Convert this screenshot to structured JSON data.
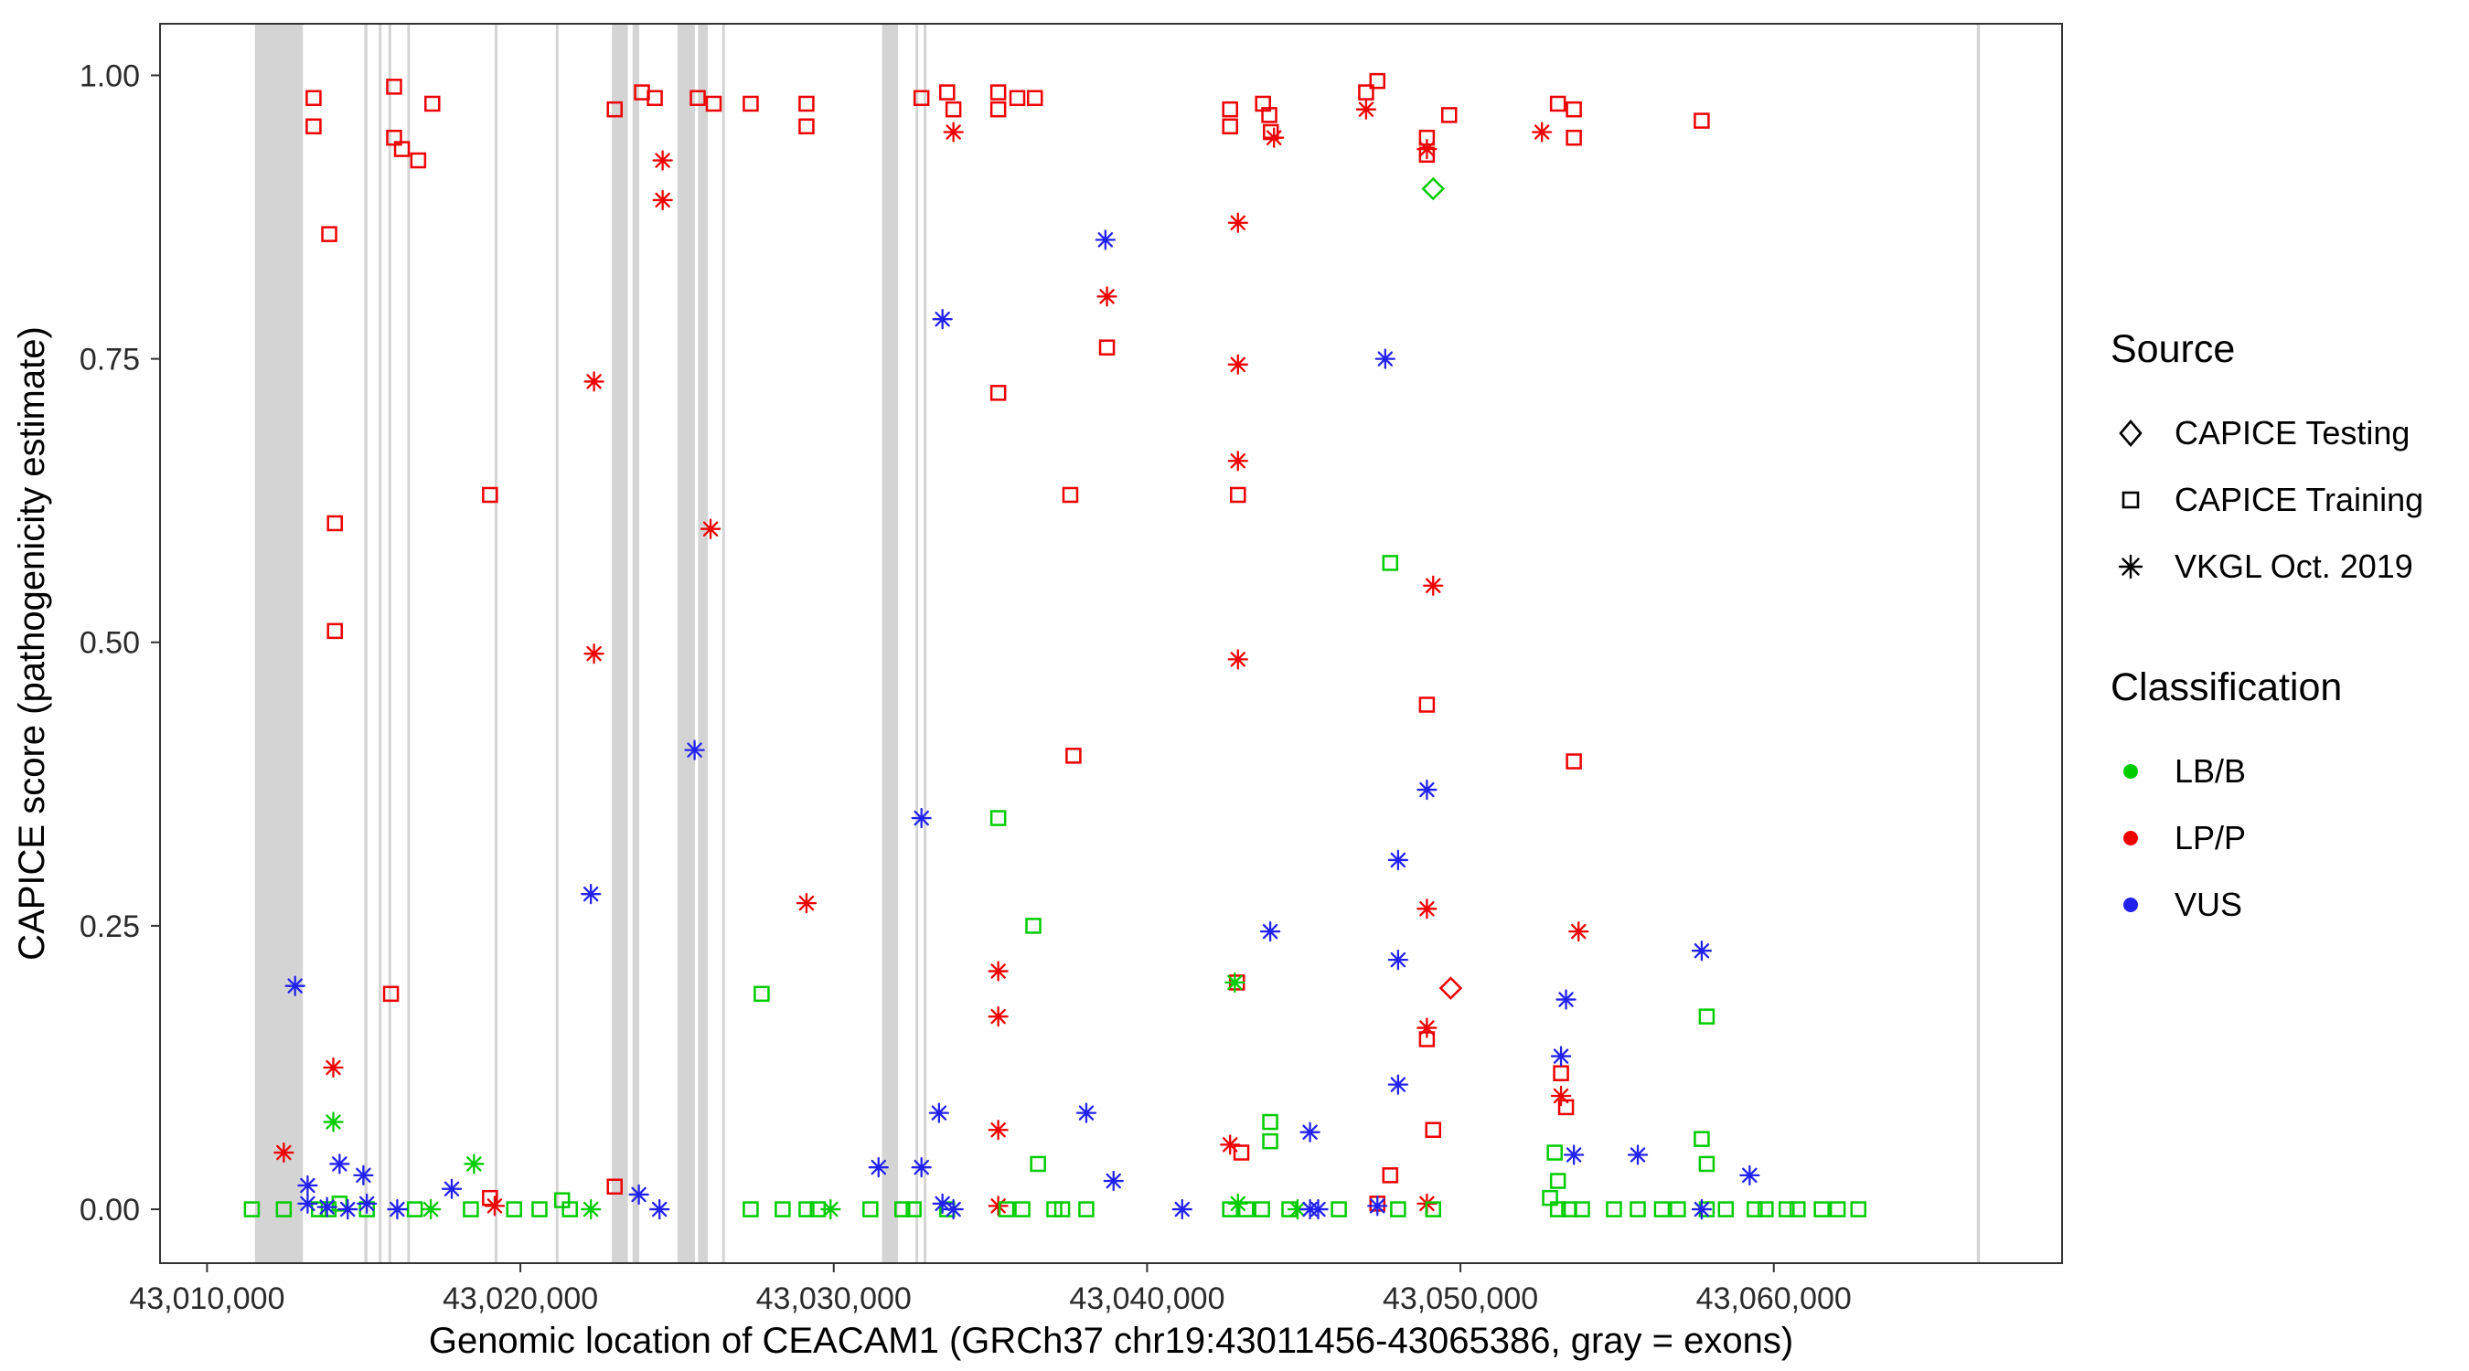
{
  "legend": {
    "source": {
      "title": "Source",
      "items": [
        {
          "label": "CAPICE Testing",
          "icon": "diamond-outline-icon"
        },
        {
          "label": "CAPICE Training",
          "icon": "square-outline-icon"
        },
        {
          "label": "VKGL Oct. 2019",
          "icon": "asterisk-icon"
        }
      ]
    },
    "classification": {
      "title": "Classification",
      "items": [
        {
          "label": "LB/B",
          "color_code": "B"
        },
        {
          "label": "LP/P",
          "color_code": "P"
        },
        {
          "label": "VUS",
          "color_code": "U"
        }
      ]
    }
  },
  "chart_data": {
    "type": "scatter",
    "title": "",
    "xlabel": "Genomic location of CEACAM1 (GRCh37 chr19:43011456-43065386, gray = exons)",
    "ylabel": "CAPICE score (pathogenicity estimate)",
    "x_domain": [
      43008500,
      43069200
    ],
    "y_domain": [
      -0.0475,
      1.0455
    ],
    "x_ticks": [
      {
        "value": 43010000,
        "label": "43,010,000"
      },
      {
        "value": 43020000,
        "label": "43,020,000"
      },
      {
        "value": 43030000,
        "label": "43,030,000"
      },
      {
        "value": 43040000,
        "label": "43,040,000"
      },
      {
        "value": 43050000,
        "label": "43,050,000"
      },
      {
        "value": 43060000,
        "label": "43,060,000"
      }
    ],
    "y_ticks": [
      {
        "value": 0,
        "label": "0.00"
      },
      {
        "value": 0.25,
        "label": "0.25"
      },
      {
        "value": 0.5,
        "label": "0.50"
      },
      {
        "value": 0.75,
        "label": "0.75"
      },
      {
        "value": 1,
        "label": "1.00"
      }
    ],
    "grid": false,
    "legend_position": "right",
    "exon_color": "#D4D4D4",
    "colors": {
      "B": "#00CC00",
      "P": "#EE0000",
      "U": "#2222EE"
    },
    "source_codes": {
      "T": "CAPICE Testing",
      "R": "CAPICE Training",
      "V": "VKGL Oct. 2019"
    },
    "class_codes": {
      "B": "LB/B",
      "P": "LP/P",
      "U": "VUS"
    },
    "exons": [
      [
        43011530,
        43013060
      ],
      [
        43015020,
        43015120
      ],
      [
        43015480,
        43015560
      ],
      [
        43015790,
        43015870
      ],
      [
        43016390,
        43016470
      ],
      [
        43019180,
        43019230
      ],
      [
        43021130,
        43021190
      ],
      [
        43022920,
        43023430
      ],
      [
        43023580,
        43023790
      ],
      [
        43025010,
        43025570
      ],
      [
        43025670,
        43025980
      ],
      [
        43026440,
        43026500
      ],
      [
        43031540,
        43032050
      ],
      [
        43032610,
        43032670
      ],
      [
        43032870,
        43032930
      ],
      [
        43066480,
        43066580
      ]
    ],
    "points": [
      [
        43013400,
        0.98,
        "R",
        "P"
      ],
      [
        43013400,
        0.955,
        "R",
        "P"
      ],
      [
        43013900,
        0.86,
        "R",
        "P"
      ],
      [
        43015970,
        0.99,
        "R",
        "P"
      ],
      [
        43015970,
        0.945,
        "R",
        "P"
      ],
      [
        43016220,
        0.935,
        "R",
        "P"
      ],
      [
        43016740,
        0.925,
        "R",
        "P"
      ],
      [
        43017190,
        0.975,
        "R",
        "P"
      ],
      [
        43023010,
        0.97,
        "R",
        "P"
      ],
      [
        43023880,
        0.985,
        "R",
        "P"
      ],
      [
        43024290,
        0.98,
        "R",
        "P"
      ],
      [
        43025660,
        0.98,
        "R",
        "P"
      ],
      [
        43026170,
        0.975,
        "R",
        "P"
      ],
      [
        43027350,
        0.975,
        "R",
        "P"
      ],
      [
        43029130,
        0.975,
        "R",
        "P"
      ],
      [
        43029130,
        0.955,
        "R",
        "P"
      ],
      [
        43032800,
        0.98,
        "R",
        "P"
      ],
      [
        43033620,
        0.985,
        "R",
        "P"
      ],
      [
        43033820,
        0.97,
        "R",
        "P"
      ],
      [
        43035250,
        0.985,
        "R",
        "P"
      ],
      [
        43035250,
        0.97,
        "R",
        "P"
      ],
      [
        43035860,
        0.98,
        "R",
        "P"
      ],
      [
        43036420,
        0.98,
        "R",
        "P"
      ],
      [
        43042650,
        0.97,
        "R",
        "P"
      ],
      [
        43042650,
        0.955,
        "R",
        "P"
      ],
      [
        43043700,
        0.975,
        "R",
        "P"
      ],
      [
        43043900,
        0.965,
        "R",
        "P"
      ],
      [
        43043950,
        0.95,
        "R",
        "P"
      ],
      [
        43046990,
        0.985,
        "R",
        "P"
      ],
      [
        43047350,
        0.995,
        "R",
        "P"
      ],
      [
        43048930,
        0.945,
        "R",
        "P"
      ],
      [
        43048930,
        0.93,
        "R",
        "P"
      ],
      [
        43049640,
        0.965,
        "R",
        "P"
      ],
      [
        43053110,
        0.975,
        "R",
        "P"
      ],
      [
        43053620,
        0.97,
        "R",
        "P"
      ],
      [
        43053620,
        0.945,
        "R",
        "P"
      ],
      [
        43057700,
        0.96,
        "R",
        "P"
      ],
      [
        43038720,
        0.76,
        "R",
        "P"
      ],
      [
        43035250,
        0.72,
        "R",
        "P"
      ],
      [
        43037550,
        0.63,
        "R",
        "P"
      ],
      [
        43042900,
        0.63,
        "R",
        "P"
      ],
      [
        43019030,
        0.63,
        "R",
        "P"
      ],
      [
        43014080,
        0.605,
        "R",
        "P"
      ],
      [
        43014080,
        0.51,
        "R",
        "P"
      ],
      [
        43048930,
        0.445,
        "R",
        "P"
      ],
      [
        43037650,
        0.4,
        "R",
        "P"
      ],
      [
        43053620,
        0.395,
        "R",
        "P"
      ],
      [
        43042870,
        0.2,
        "R",
        "P"
      ],
      [
        43015870,
        0.19,
        "R",
        "P"
      ],
      [
        43048930,
        0.15,
        "R",
        "P"
      ],
      [
        43053210,
        0.12,
        "R",
        "P"
      ],
      [
        43053370,
        0.09,
        "R",
        "P"
      ],
      [
        43049130,
        0.07,
        "R",
        "P"
      ],
      [
        43043010,
        0.05,
        "R",
        "P"
      ],
      [
        43047760,
        0.03,
        "R",
        "P"
      ],
      [
        43023010,
        0.02,
        "R",
        "P"
      ],
      [
        43019030,
        0.01,
        "R",
        "P"
      ],
      [
        43047350,
        0.005,
        "R",
        "P"
      ],
      [
        43024540,
        0.925,
        "V",
        "P"
      ],
      [
        43024540,
        0.89,
        "V",
        "P"
      ],
      [
        43033820,
        0.95,
        "V",
        "P"
      ],
      [
        43044050,
        0.945,
        "V",
        "P"
      ],
      [
        43046990,
        0.97,
        "V",
        "P"
      ],
      [
        43048930,
        0.935,
        "V",
        "P"
      ],
      [
        43052600,
        0.95,
        "V",
        "P"
      ],
      [
        43042900,
        0.87,
        "V",
        "P"
      ],
      [
        43038720,
        0.805,
        "V",
        "P"
      ],
      [
        43042900,
        0.745,
        "V",
        "P"
      ],
      [
        43022350,
        0.73,
        "V",
        "P"
      ],
      [
        43042900,
        0.66,
        "V",
        "P"
      ],
      [
        43026070,
        0.6,
        "V",
        "P"
      ],
      [
        43049130,
        0.55,
        "V",
        "P"
      ],
      [
        43022350,
        0.49,
        "V",
        "P"
      ],
      [
        43042900,
        0.485,
        "V",
        "P"
      ],
      [
        43029130,
        0.27,
        "V",
        "P"
      ],
      [
        43048930,
        0.265,
        "V",
        "P"
      ],
      [
        43053770,
        0.245,
        "V",
        "P"
      ],
      [
        43035250,
        0.21,
        "V",
        "P"
      ],
      [
        43035250,
        0.17,
        "V",
        "P"
      ],
      [
        43048930,
        0.16,
        "V",
        "P"
      ],
      [
        43014030,
        0.125,
        "V",
        "P"
      ],
      [
        43053210,
        0.1,
        "V",
        "P"
      ],
      [
        43035250,
        0.07,
        "V",
        "P"
      ],
      [
        43042650,
        0.057,
        "V",
        "P"
      ],
      [
        43012450,
        0.05,
        "V",
        "P"
      ],
      [
        43019180,
        0.003,
        "V",
        "P"
      ],
      [
        43035250,
        0.003,
        "V",
        "P"
      ],
      [
        43048930,
        0.005,
        "V",
        "P"
      ],
      [
        43049690,
        0.195,
        "T",
        "P"
      ],
      [
        43049130,
        0.9,
        "T",
        "B"
      ],
      [
        43047760,
        0.57,
        "R",
        "B"
      ],
      [
        43035250,
        0.345,
        "R",
        "B"
      ],
      [
        43036370,
        0.25,
        "R",
        "B"
      ],
      [
        43027700,
        0.19,
        "R",
        "B"
      ],
      [
        43057860,
        0.17,
        "R",
        "B"
      ],
      [
        43043930,
        0.077,
        "R",
        "B"
      ],
      [
        43043930,
        0.06,
        "R",
        "B"
      ],
      [
        43057700,
        0.062,
        "R",
        "B"
      ],
      [
        43053010,
        0.05,
        "R",
        "B"
      ],
      [
        43057860,
        0.04,
        "R",
        "B"
      ],
      [
        43036520,
        0.04,
        "R",
        "B"
      ],
      [
        43053110,
        0.025,
        "R",
        "B"
      ],
      [
        43011430,
        0,
        "R",
        "B"
      ],
      [
        43012450,
        0,
        "R",
        "B"
      ],
      [
        43013570,
        0,
        "R",
        "B"
      ],
      [
        43013880,
        0,
        "R",
        "B"
      ],
      [
        43014230,
        0.005,
        "R",
        "B"
      ],
      [
        43015100,
        0,
        "R",
        "B"
      ],
      [
        43016630,
        0,
        "R",
        "B"
      ],
      [
        43018420,
        0,
        "R",
        "B"
      ],
      [
        43019800,
        0,
        "R",
        "B"
      ],
      [
        43020610,
        0,
        "R",
        "B"
      ],
      [
        43021330,
        0.008,
        "R",
        "B"
      ],
      [
        43021580,
        0,
        "R",
        "B"
      ],
      [
        43027350,
        0,
        "R",
        "B"
      ],
      [
        43028370,
        0,
        "R",
        "B"
      ],
      [
        43029130,
        0,
        "R",
        "B"
      ],
      [
        43029490,
        0,
        "R",
        "B"
      ],
      [
        43031170,
        0,
        "R",
        "B"
      ],
      [
        43032190,
        0,
        "R",
        "B"
      ],
      [
        43032550,
        0,
        "R",
        "B"
      ],
      [
        43033620,
        0,
        "R",
        "B"
      ],
      [
        43035510,
        0,
        "R",
        "B"
      ],
      [
        43036020,
        0,
        "R",
        "B"
      ],
      [
        43037040,
        0,
        "R",
        "B"
      ],
      [
        43037290,
        0,
        "R",
        "B"
      ],
      [
        43038060,
        0,
        "R",
        "B"
      ],
      [
        43042650,
        0,
        "R",
        "B"
      ],
      [
        43043160,
        0,
        "R",
        "B"
      ],
      [
        43043670,
        0,
        "R",
        "B"
      ],
      [
        43044540,
        0,
        "R",
        "B"
      ],
      [
        43046120,
        0,
        "R",
        "B"
      ],
      [
        43048010,
        0,
        "R",
        "B"
      ],
      [
        43049130,
        0,
        "R",
        "B"
      ],
      [
        43052860,
        0.01,
        "R",
        "B"
      ],
      [
        43053110,
        0,
        "R",
        "B"
      ],
      [
        43053470,
        0,
        "R",
        "B"
      ],
      [
        43053880,
        0,
        "R",
        "B"
      ],
      [
        43054900,
        0,
        "R",
        "B"
      ],
      [
        43055660,
        0,
        "R",
        "B"
      ],
      [
        43056430,
        0,
        "R",
        "B"
      ],
      [
        43056940,
        0,
        "R",
        "B"
      ],
      [
        43057860,
        0,
        "R",
        "B"
      ],
      [
        43058470,
        0,
        "R",
        "B"
      ],
      [
        43059390,
        0,
        "R",
        "B"
      ],
      [
        43059740,
        0,
        "R",
        "B"
      ],
      [
        43060410,
        0,
        "R",
        "B"
      ],
      [
        43060760,
        0,
        "R",
        "B"
      ],
      [
        43061530,
        0,
        "R",
        "B"
      ],
      [
        43062040,
        0,
        "R",
        "B"
      ],
      [
        43062700,
        0,
        "R",
        "B"
      ],
      [
        43014030,
        0.077,
        "V",
        "B"
      ],
      [
        43018520,
        0.04,
        "V",
        "B"
      ],
      [
        43042800,
        0.2,
        "V",
        "B"
      ],
      [
        43017140,
        0,
        "V",
        "B"
      ],
      [
        43022250,
        0,
        "V",
        "B"
      ],
      [
        43029900,
        0,
        "V",
        "B"
      ],
      [
        43042900,
        0.005,
        "V",
        "B"
      ],
      [
        43044800,
        0,
        "V",
        "B"
      ],
      [
        43038670,
        0.855,
        "V",
        "U"
      ],
      [
        43033470,
        0.785,
        "V",
        "U"
      ],
      [
        43047600,
        0.75,
        "V",
        "U"
      ],
      [
        43025560,
        0.405,
        "V",
        "U"
      ],
      [
        43048930,
        0.37,
        "V",
        "U"
      ],
      [
        43032800,
        0.345,
        "V",
        "U"
      ],
      [
        43048010,
        0.308,
        "V",
        "U"
      ],
      [
        43022250,
        0.278,
        "V",
        "U"
      ],
      [
        43043930,
        0.245,
        "V",
        "U"
      ],
      [
        43057700,
        0.228,
        "V",
        "U"
      ],
      [
        43048010,
        0.22,
        "V",
        "U"
      ],
      [
        43012810,
        0.197,
        "V",
        "U"
      ],
      [
        43053370,
        0.185,
        "V",
        "U"
      ],
      [
        43053210,
        0.135,
        "V",
        "U"
      ],
      [
        43048010,
        0.11,
        "V",
        "U"
      ],
      [
        43033360,
        0.085,
        "V",
        "U"
      ],
      [
        43038060,
        0.085,
        "V",
        "U"
      ],
      [
        43045200,
        0.068,
        "V",
        "U"
      ],
      [
        43053620,
        0.048,
        "V",
        "U"
      ],
      [
        43055660,
        0.048,
        "V",
        "U"
      ],
      [
        43014230,
        0.04,
        "V",
        "U"
      ],
      [
        43031430,
        0.037,
        "V",
        "U"
      ],
      [
        43032800,
        0.037,
        "V",
        "U"
      ],
      [
        43014990,
        0.03,
        "V",
        "U"
      ],
      [
        43059230,
        0.03,
        "V",
        "U"
      ],
      [
        43038930,
        0.025,
        "V",
        "U"
      ],
      [
        43013210,
        0.021,
        "V",
        "U"
      ],
      [
        43017810,
        0.018,
        "V",
        "U"
      ],
      [
        43023780,
        0.013,
        "V",
        "U"
      ],
      [
        43013210,
        0.005,
        "V",
        "U"
      ],
      [
        43013830,
        0.002,
        "V",
        "U"
      ],
      [
        43014490,
        0,
        "V",
        "U"
      ],
      [
        43015100,
        0.005,
        "V",
        "U"
      ],
      [
        43016070,
        0,
        "V",
        "U"
      ],
      [
        43024440,
        0,
        "V",
        "U"
      ],
      [
        43033470,
        0.005,
        "V",
        "U"
      ],
      [
        43033820,
        0,
        "V",
        "U"
      ],
      [
        43041120,
        0,
        "V",
        "U"
      ],
      [
        43045200,
        0,
        "V",
        "U"
      ],
      [
        43045460,
        0,
        "V",
        "U"
      ],
      [
        43047350,
        0.003,
        "V",
        "U"
      ],
      [
        43057700,
        0,
        "V",
        "U"
      ]
    ]
  }
}
